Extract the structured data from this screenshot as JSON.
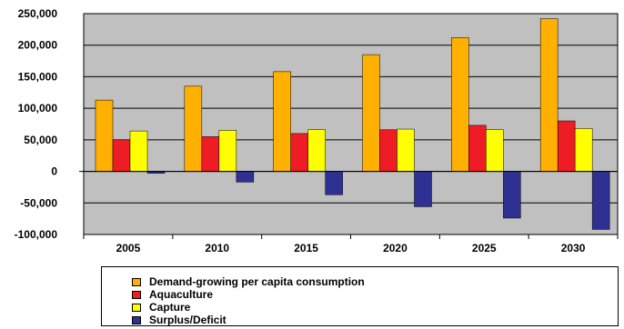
{
  "chart_data": {
    "type": "bar",
    "title": "",
    "xlabel": "",
    "ylabel": "",
    "categories": [
      "2005",
      "2010",
      "2015",
      "2020",
      "2025",
      "2030"
    ],
    "ylim": [
      -100000,
      250000
    ],
    "yticks": [
      250000,
      200000,
      150000,
      100000,
      50000,
      0,
      -50000,
      -100000
    ],
    "ytick_labels": [
      "250,000",
      "200,000",
      "150,000",
      "100,000",
      "50,000",
      "0",
      "-50,000",
      "-100,000"
    ],
    "grid": true,
    "plot_background": "#c0c0c0",
    "legend_position": "bottom",
    "series": [
      {
        "name": "Demand-growing per capita consumption",
        "color": "#ffb000",
        "values": [
          113000,
          135000,
          158000,
          185000,
          212000,
          242000
        ]
      },
      {
        "name": "Aquaculture",
        "color": "#ee1c24",
        "values": [
          50000,
          55000,
          60000,
          66000,
          73000,
          80000
        ]
      },
      {
        "name": "Capture",
        "color": "#ffff00",
        "values": [
          64000,
          65000,
          66000,
          67000,
          66000,
          68000
        ]
      },
      {
        "name": "Surplus/Deficit",
        "color": "#2e3192",
        "values": [
          -3000,
          -17000,
          -37000,
          -56000,
          -74000,
          -92000
        ]
      }
    ]
  }
}
